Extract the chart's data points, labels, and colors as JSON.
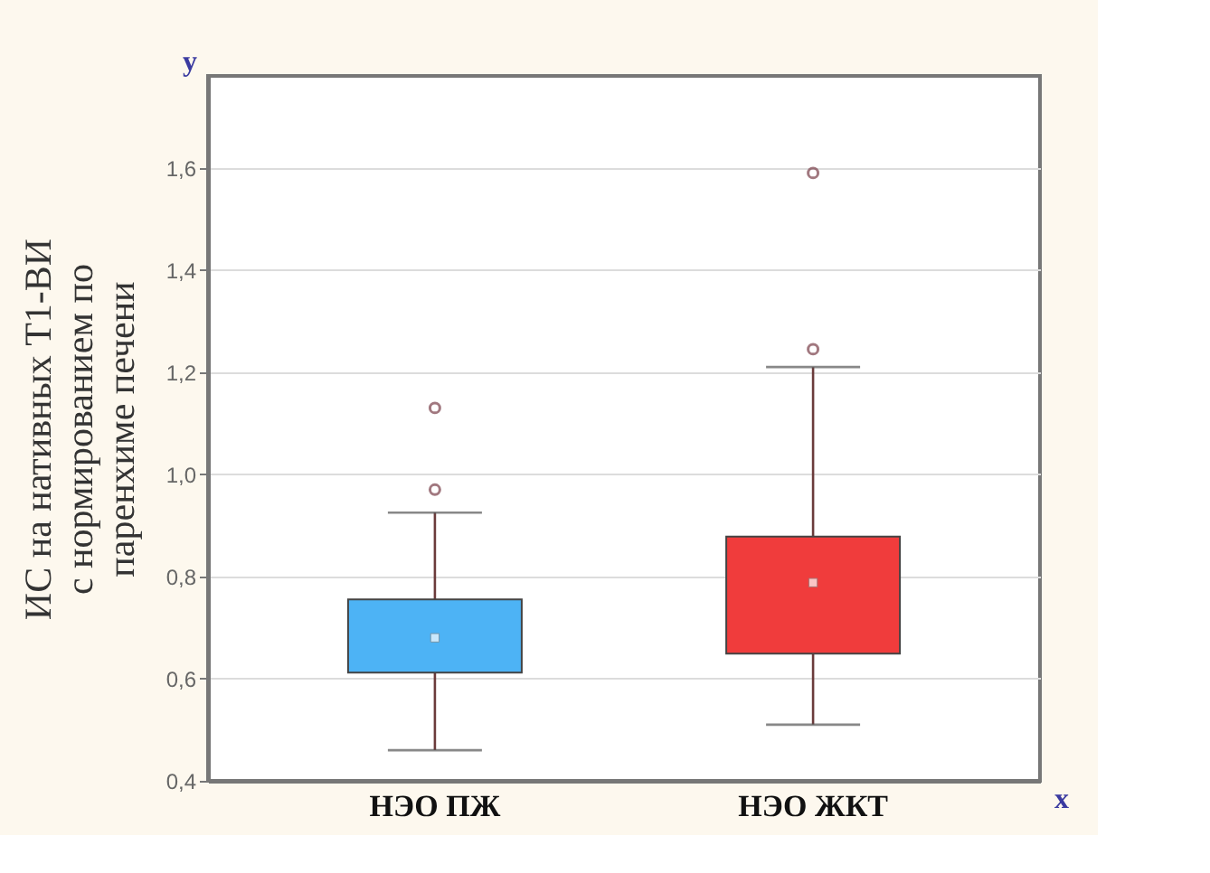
{
  "chart_data": {
    "type": "box",
    "ylabel": "ИС на нативных Т1-ВИ\nс нормированием по\nпаренхиме печени",
    "categories": [
      "НЭО ПЖ",
      "НЭО ЖКТ"
    ],
    "colors": [
      "#4db3f5",
      "#f03c3c"
    ],
    "boxes": [
      {
        "low": 0.46,
        "q1": 0.612,
        "median": 0.68,
        "q3": 0.755,
        "high": 0.925,
        "outliers": [
          0.97,
          1.13
        ]
      },
      {
        "low": 0.51,
        "q1": 0.649,
        "median": 0.788,
        "q3": 0.878,
        "high": 1.21,
        "outliers": [
          1.245,
          1.59
        ]
      }
    ],
    "ylim": [
      0.4,
      1.78
    ],
    "yticks": [
      {
        "value": 0.4,
        "label": "0,4"
      },
      {
        "value": 0.6,
        "label": "0,6"
      },
      {
        "value": 0.8,
        "label": "0,8"
      },
      {
        "value": 1.0,
        "label": "1,0"
      },
      {
        "value": 1.2,
        "label": "1,2"
      },
      {
        "value": 1.4,
        "label": "1,4"
      },
      {
        "value": 1.6,
        "label": "1,6"
      }
    ],
    "annotations": [
      "y",
      "x"
    ],
    "grid": "y",
    "marker": "circle"
  }
}
